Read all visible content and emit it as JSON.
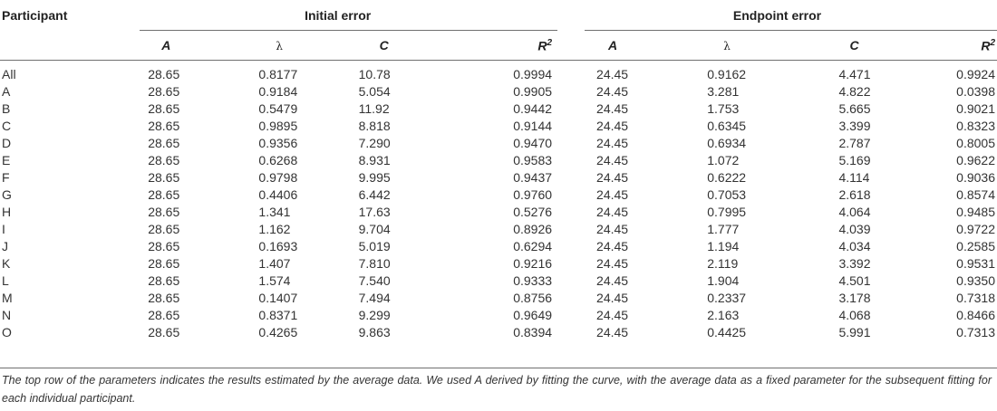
{
  "header": {
    "participant": "Participant",
    "initial_group": "Initial error",
    "endpoint_group": "Endpoint error",
    "col_a": "A",
    "col_lambda": "λ",
    "col_c": "C",
    "col_r": "R",
    "col_r_sup": "2"
  },
  "rows": [
    {
      "p": "All",
      "a1": "28.65",
      "l1": "0.8177",
      "c1": "10.78",
      "r1": "0.9994",
      "a2": "24.45",
      "l2": "0.9162",
      "c2": "4.471",
      "r2": "0.9924"
    },
    {
      "p": "A",
      "a1": "28.65",
      "l1": "0.9184",
      "c1": "5.054",
      "r1": "0.9905",
      "a2": "24.45",
      "l2": "3.281",
      "c2": "4.822",
      "r2": "0.0398"
    },
    {
      "p": "B",
      "a1": "28.65",
      "l1": "0.5479",
      "c1": "11.92",
      "r1": "0.9442",
      "a2": "24.45",
      "l2": "1.753",
      "c2": "5.665",
      "r2": "0.9021"
    },
    {
      "p": "C",
      "a1": "28.65",
      "l1": "0.9895",
      "c1": "8.818",
      "r1": "0.9144",
      "a2": "24.45",
      "l2": "0.6345",
      "c2": "3.399",
      "r2": "0.8323"
    },
    {
      "p": "D",
      "a1": "28.65",
      "l1": "0.9356",
      "c1": "7.290",
      "r1": "0.9470",
      "a2": "24.45",
      "l2": "0.6934",
      "c2": "2.787",
      "r2": "0.8005"
    },
    {
      "p": "E",
      "a1": "28.65",
      "l1": "0.6268",
      "c1": "8.931",
      "r1": "0.9583",
      "a2": "24.45",
      "l2": "1.072",
      "c2": "5.169",
      "r2": "0.9622"
    },
    {
      "p": "F",
      "a1": "28.65",
      "l1": "0.9798",
      "c1": "9.995",
      "r1": "0.9437",
      "a2": "24.45",
      "l2": "0.6222",
      "c2": "4.114",
      "r2": "0.9036"
    },
    {
      "p": "G",
      "a1": "28.65",
      "l1": "0.4406",
      "c1": "6.442",
      "r1": "0.9760",
      "a2": "24.45",
      "l2": "0.7053",
      "c2": "2.618",
      "r2": "0.8574"
    },
    {
      "p": "H",
      "a1": "28.65",
      "l1": "1.341",
      "c1": "17.63",
      "r1": "0.5276",
      "a2": "24.45",
      "l2": "0.7995",
      "c2": "4.064",
      "r2": "0.9485"
    },
    {
      "p": "I",
      "a1": "28.65",
      "l1": "1.162",
      "c1": "9.704",
      "r1": "0.8926",
      "a2": "24.45",
      "l2": "1.777",
      "c2": "4.039",
      "r2": "0.9722"
    },
    {
      "p": "J",
      "a1": "28.65",
      "l1": "0.1693",
      "c1": "5.019",
      "r1": "0.6294",
      "a2": "24.45",
      "l2": "1.194",
      "c2": "4.034",
      "r2": "0.2585"
    },
    {
      "p": "K",
      "a1": "28.65",
      "l1": "1.407",
      "c1": "7.810",
      "r1": "0.9216",
      "a2": "24.45",
      "l2": "2.119",
      "c2": "3.392",
      "r2": "0.9531"
    },
    {
      "p": "L",
      "a1": "28.65",
      "l1": "1.574",
      "c1": "7.540",
      "r1": "0.9333",
      "a2": "24.45",
      "l2": "1.904",
      "c2": "4.501",
      "r2": "0.9350"
    },
    {
      "p": "M",
      "a1": "28.65",
      "l1": "0.1407",
      "c1": "7.494",
      "r1": "0.8756",
      "a2": "24.45",
      "l2": "0.2337",
      "c2": "3.178",
      "r2": "0.7318"
    },
    {
      "p": "N",
      "a1": "28.65",
      "l1": "0.8371",
      "c1": "9.299",
      "r1": "0.9649",
      "a2": "24.45",
      "l2": "2.163",
      "c2": "4.068",
      "r2": "0.8466"
    },
    {
      "p": "O",
      "a1": "28.65",
      "l1": "0.4265",
      "c1": "9.863",
      "r1": "0.8394",
      "a2": "24.45",
      "l2": "0.4425",
      "c2": "5.991",
      "r2": "0.7313"
    }
  ],
  "footnote": "The top row of the parameters indicates the results estimated by the average data. We used A derived by fitting the curve, with the average data as a fixed parameter for the subsequent fitting for each individual participant."
}
